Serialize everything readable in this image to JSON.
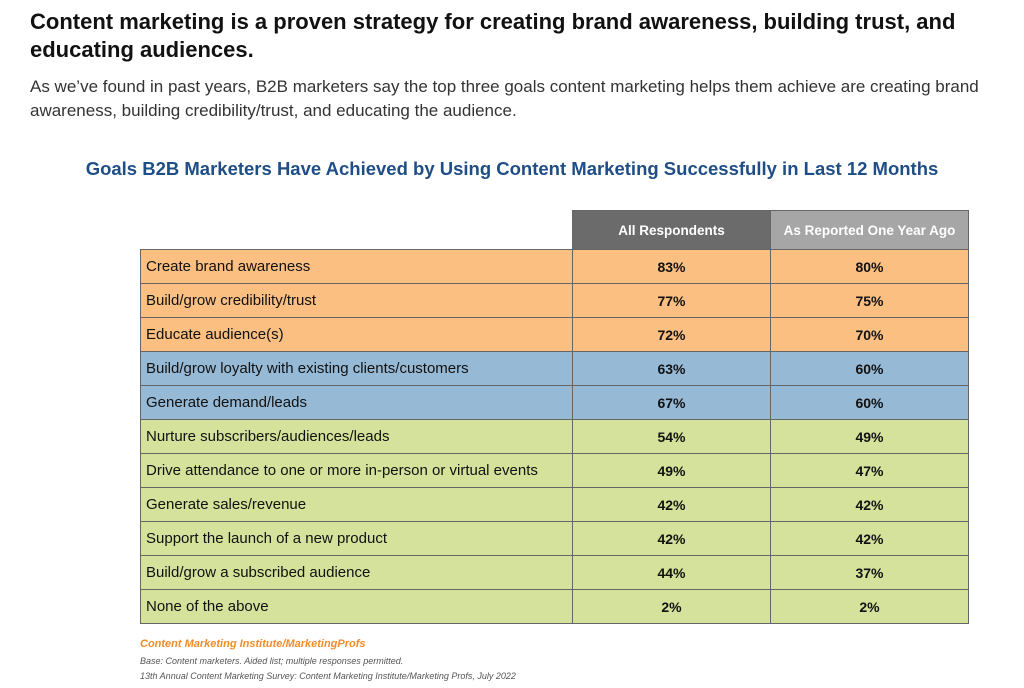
{
  "heading": "Content marketing is a proven strategy for creating brand awareness, building trust, and educating audiences.",
  "intro": "As we’ve found in past years, B2B marketers say the top three goals content marketing helps them achieve are creating brand awareness, building credibility/trust, and educating the audience.",
  "chart_data": {
    "type": "table",
    "title": "Goals B2B Marketers Have Achieved by Using Content Marketing Successfully in Last 12 Months",
    "columns": [
      "All Respondents",
      "As Reported One Year Ago"
    ],
    "rows": [
      {
        "label": "Create brand awareness",
        "values": [
          "83%",
          "80%"
        ],
        "group": "orange"
      },
      {
        "label": "Build/grow credibility/trust",
        "values": [
          "77%",
          "75%"
        ],
        "group": "orange"
      },
      {
        "label": "Educate audience(s)",
        "values": [
          "72%",
          "70%"
        ],
        "group": "orange"
      },
      {
        "label": "Build/grow loyalty with existing clients/customers",
        "values": [
          "63%",
          "60%"
        ],
        "group": "blue"
      },
      {
        "label": "Generate demand/leads",
        "values": [
          "67%",
          "60%"
        ],
        "group": "blue"
      },
      {
        "label": "Nurture subscribers/audiences/leads",
        "values": [
          "54%",
          "49%"
        ],
        "group": "green"
      },
      {
        "label": "Drive attendance to one or more in-person or virtual events",
        "values": [
          "49%",
          "47%"
        ],
        "group": "green"
      },
      {
        "label": "Generate sales/revenue",
        "values": [
          "42%",
          "42%"
        ],
        "group": "green"
      },
      {
        "label": "Support the launch of a new product",
        "values": [
          "42%",
          "42%"
        ],
        "group": "green"
      },
      {
        "label": "Build/grow a subscribed audience",
        "values": [
          "44%",
          "37%"
        ],
        "group": "green"
      },
      {
        "label": "None of the above",
        "values": [
          "2%",
          "2%"
        ],
        "group": "green"
      }
    ],
    "group_colors": {
      "orange": "#fcbf82",
      "blue": "#96b9d6",
      "green": "#d5e29b"
    },
    "header_colors": [
      "#6b6b6b",
      "#a6a6a6"
    ]
  },
  "footer": {
    "source": "Content Marketing Institute/MarketingProfs",
    "base": "Base: Content marketers. Aided list; multiple responses permitted.",
    "survey": "13th Annual Content Marketing Survey: Content Marketing Institute/Marketing Profs, July 2022"
  }
}
